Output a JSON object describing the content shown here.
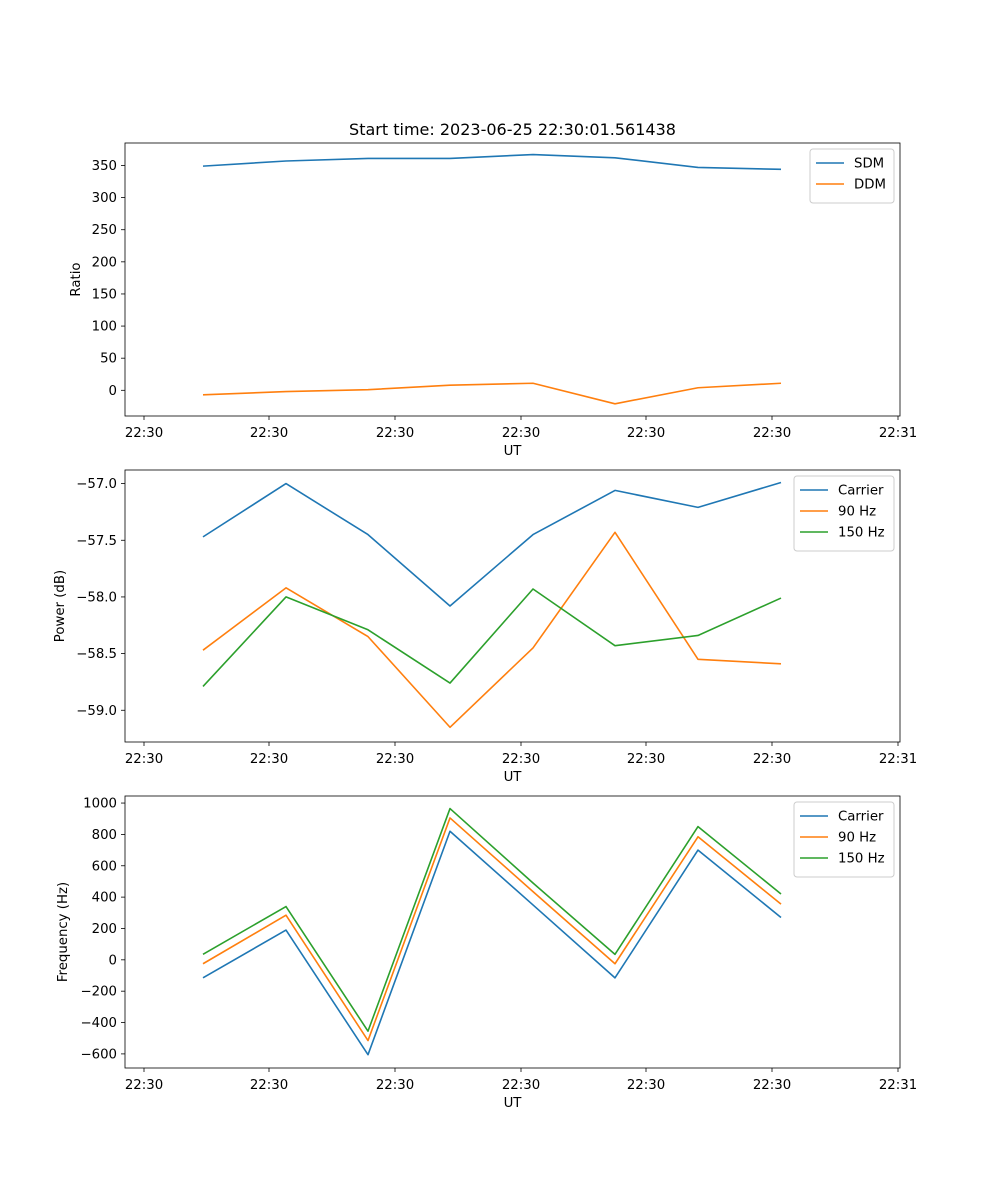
{
  "chart_data": [
    {
      "type": "line",
      "title": "Start time: 2023-06-25 22:30:01.561438",
      "xlabel": "UT",
      "ylabel": "Ratio",
      "x_tick_labels": [
        "22:30",
        "22:30",
        "22:30",
        "22:30",
        "22:30",
        "22:30",
        "22:31"
      ],
      "y_ticks": [
        0,
        50,
        100,
        150,
        200,
        250,
        300,
        350
      ],
      "ylim": [
        -40,
        385
      ],
      "legend_position": "upper-right",
      "series": [
        {
          "name": "SDM",
          "color": "#1f77b4",
          "values": [
            349,
            357,
            361,
            361,
            367,
            362,
            347,
            344
          ]
        },
        {
          "name": "DDM",
          "color": "#ff7f0e",
          "values": [
            -7,
            -2,
            1,
            8,
            11,
            -21,
            4,
            11
          ]
        }
      ]
    },
    {
      "type": "line",
      "title": "",
      "xlabel": "UT",
      "ylabel": "Power (dB)",
      "x_tick_labels": [
        "22:30",
        "22:30",
        "22:30",
        "22:30",
        "22:30",
        "22:30",
        "22:31"
      ],
      "y_ticks": [
        -59.0,
        -58.5,
        -58.0,
        -57.5,
        -57.0
      ],
      "y_tick_labels": [
        "−59.0",
        "−58.5",
        "−58.0",
        "−57.5",
        "−57.0"
      ],
      "ylim": [
        -59.28,
        -56.88
      ],
      "legend_position": "upper-right",
      "series": [
        {
          "name": "Carrier",
          "color": "#1f77b4",
          "values": [
            -57.47,
            -57.0,
            -57.45,
            -58.08,
            -57.45,
            -57.06,
            -57.21,
            -56.99
          ]
        },
        {
          "name": "90 Hz",
          "color": "#ff7f0e",
          "values": [
            -58.47,
            -57.92,
            -58.35,
            -59.15,
            -58.45,
            -57.43,
            -58.55,
            -58.59
          ]
        },
        {
          "name": "150 Hz",
          "color": "#2ca02c",
          "values": [
            -58.79,
            -58.0,
            -58.29,
            -58.76,
            -57.93,
            -58.43,
            -58.34,
            -58.01
          ]
        }
      ]
    },
    {
      "type": "line",
      "title": "",
      "xlabel": "UT",
      "ylabel": "Frequency (Hz)",
      "x_tick_labels": [
        "22:30",
        "22:30",
        "22:30",
        "22:30",
        "22:30",
        "22:30",
        "22:31"
      ],
      "y_ticks": [
        -600,
        -400,
        -200,
        0,
        200,
        400,
        600,
        800,
        1000
      ],
      "y_tick_labels": [
        "−600",
        "−400",
        "−200",
        "0",
        "200",
        "400",
        "600",
        "800",
        "1000"
      ],
      "ylim": [
        -690,
        1045
      ],
      "legend_position": "upper-right",
      "series": [
        {
          "name": "Carrier",
          "color": "#1f77b4",
          "values": [
            -115,
            190,
            -605,
            820,
            350,
            -115,
            700,
            270
          ]
        },
        {
          "name": "90 Hz",
          "color": "#ff7f0e",
          "values": [
            -25,
            285,
            -515,
            905,
            435,
            -25,
            785,
            355
          ]
        },
        {
          "name": "150 Hz",
          "color": "#2ca02c",
          "values": [
            35,
            340,
            -455,
            965,
            490,
            35,
            850,
            420
          ]
        }
      ]
    }
  ]
}
